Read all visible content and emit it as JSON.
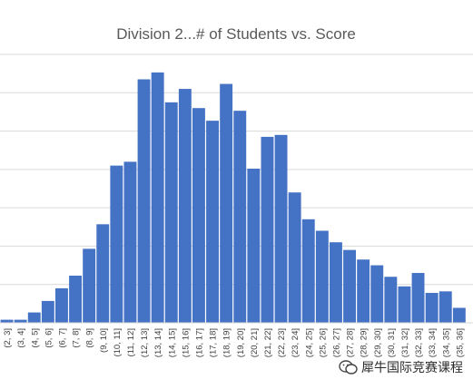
{
  "chart_data": {
    "type": "bar",
    "title": "Division 2...# of Students vs. Score",
    "xlabel": "",
    "ylabel": "",
    "ylim": [
      0,
      70
    ],
    "grid": true,
    "legend": "none",
    "bar_color": "#4472C4",
    "categories": [
      "(2, 3]",
      "(3, 4]",
      "(4, 5]",
      "(5, 6]",
      "(6, 7]",
      "(7, 8]",
      "(8, 9]",
      "(9, 10]",
      "(10, 11]",
      "(11, 12]",
      "(12, 13]",
      "(13, 14]",
      "(14, 15]",
      "(15, 16]",
      "(16, 17]",
      "(17, 18]",
      "(18, 19]",
      "(19, 20]",
      "(20, 21]",
      "(21, 22]",
      "(22, 23]",
      "(23, 24]",
      "(24, 25]",
      "(25, 26]",
      "(26, 27]",
      "(27, 28]",
      "(28, 29]",
      "(29, 30]",
      "(30, 31]",
      "(31, 32]",
      "(32, 33]",
      "(33, 34]",
      "(34, 35]",
      "(35, 36]"
    ],
    "values": [
      0.8,
      0.8,
      2.7,
      5.7,
      9.0,
      12.3,
      19.3,
      25.7,
      41.0,
      42.0,
      63.5,
      65.3,
      57.5,
      61.0,
      56.0,
      52.7,
      62.3,
      55.3,
      40.2,
      48.5,
      49.0,
      34.0,
      27.0,
      24.0,
      21.0,
      19.0,
      16.5,
      15.0,
      12.0,
      9.5,
      13.0,
      7.8,
      8.2,
      3.9
    ]
  },
  "watermark": {
    "text": "犀牛国际竞赛课程",
    "icon": "wechat-icon"
  }
}
